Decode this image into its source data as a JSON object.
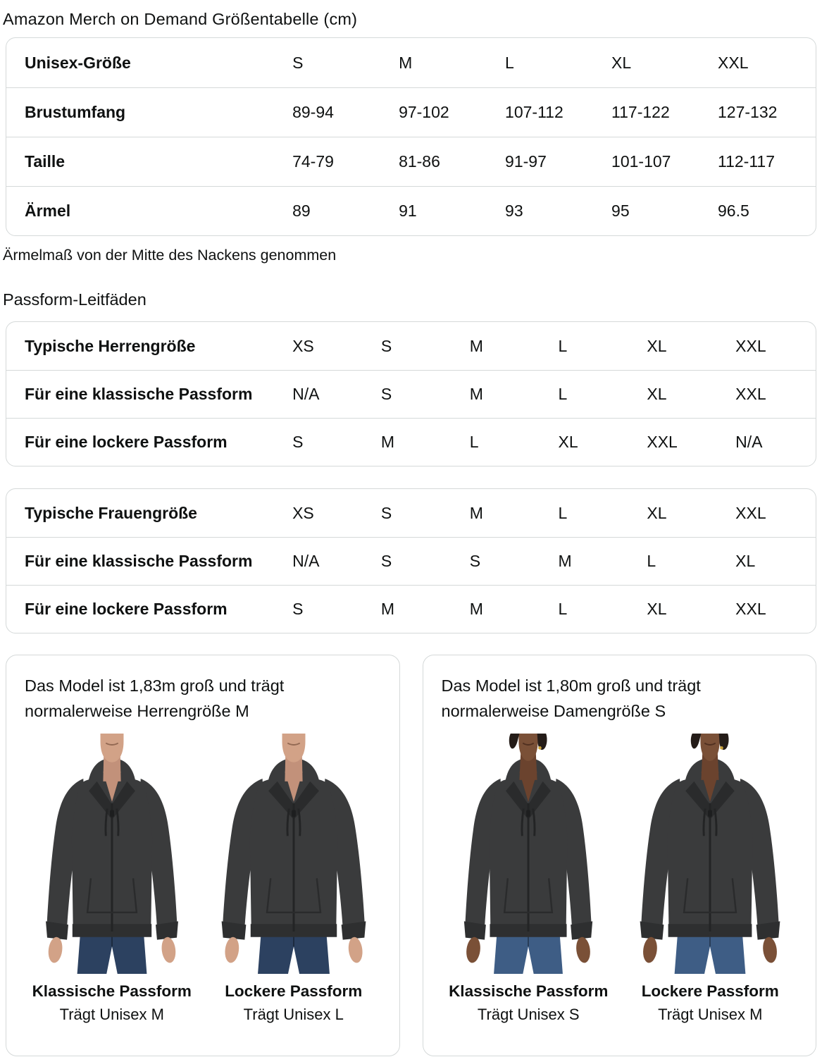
{
  "page": {
    "title": "Amazon Merch on Demand Größentabelle (cm)"
  },
  "size_table": {
    "header": {
      "label": "Unisex-Größe",
      "sizes": [
        "S",
        "M",
        "L",
        "XL",
        "XXL"
      ]
    },
    "rows": [
      {
        "label": "Brustumfang",
        "values": [
          "89-94",
          "97-102",
          "107-112",
          "117-122",
          "127-132"
        ]
      },
      {
        "label": "Taille",
        "values": [
          "74-79",
          "81-86",
          "91-97",
          "101-107",
          "112-117"
        ]
      },
      {
        "label": "Ärmel",
        "values": [
          "89",
          "91",
          "93",
          "95",
          "96.5"
        ]
      }
    ],
    "footnote": "Ärmelmaß von der Mitte des Nackens genommen"
  },
  "fit_guides": {
    "heading": "Passform-Leitfäden",
    "men_table": {
      "rows": [
        {
          "label": "Typische Herrengröße",
          "values": [
            "XS",
            "S",
            "M",
            "L",
            "XL",
            "XXL"
          ]
        },
        {
          "label": "Für eine klassische Passform",
          "values": [
            "N/A",
            "S",
            "M",
            "L",
            "XL",
            "XXL"
          ]
        },
        {
          "label": "Für eine lockere Passform",
          "values": [
            "S",
            "M",
            "L",
            "XL",
            "XXL",
            "N/A"
          ]
        }
      ]
    },
    "women_table": {
      "rows": [
        {
          "label": "Typische Frauengröße",
          "values": [
            "XS",
            "S",
            "M",
            "L",
            "XL",
            "XXL"
          ]
        },
        {
          "label": "Für eine klassische Passform",
          "values": [
            "N/A",
            "S",
            "S",
            "M",
            "L",
            "XL"
          ]
        },
        {
          "label": "Für eine lockere Passform",
          "values": [
            "S",
            "M",
            "M",
            "L",
            "XL",
            "XXL"
          ]
        }
      ]
    }
  },
  "model_cards": [
    {
      "description": "Das Model ist 1,83m groß und trägt normalerweise Herrengröße M",
      "figures": [
        {
          "fit_label": "Klassische Passform",
          "size_label": "Trägt Unisex M",
          "variant": "male",
          "fit": "classic"
        },
        {
          "fit_label": "Lockere Passform",
          "size_label": "Trägt Unisex L",
          "variant": "male",
          "fit": "loose"
        }
      ]
    },
    {
      "description": "Das Model ist 1,80m groß und trägt normalerweise Damengröße S",
      "figures": [
        {
          "fit_label": "Klassische Passform",
          "size_label": "Trägt Unisex S",
          "variant": "female",
          "fit": "classic"
        },
        {
          "fit_label": "Lockere Passform",
          "size_label": "Trägt Unisex M",
          "variant": "female",
          "fit": "loose"
        }
      ]
    }
  ],
  "colors": {
    "text": "#0F1111",
    "table_border": "#D5D9D9",
    "hoodie": "#3A3B3C",
    "hoodie_trim": "#2E2F30",
    "jeans_male": "#2C4160",
    "jeans_female": "#3E5D85",
    "skin_male": "#D2A287",
    "skin_female": "#7A5037",
    "hair_female": "#241C18",
    "earring_gold": "#C9A13B"
  }
}
